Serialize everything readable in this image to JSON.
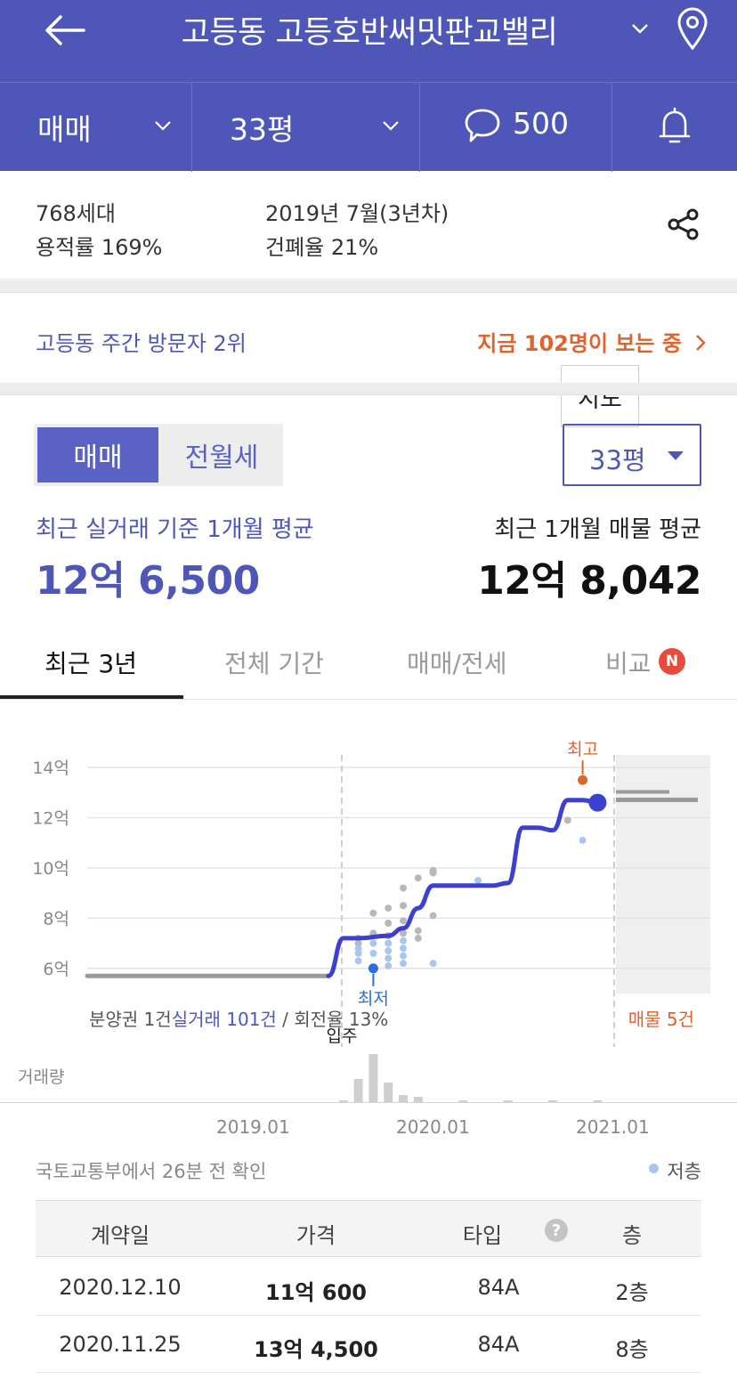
{
  "header": {
    "title": "고등동 고등호반써밋판교밸리"
  },
  "subbar": {
    "trade_type": "매매",
    "area": "33평",
    "comments_count": "500"
  },
  "info": {
    "households": "768세대",
    "floor_area_ratio": "용적률 169%",
    "completion": "2019년 7월(3년차)",
    "coverage_ratio": "건폐율 21%",
    "map_button": "지도"
  },
  "visitor": {
    "rank": "고등동 주간 방문자 2위",
    "now_viewing": "지금 102명이 보는 중"
  },
  "price_panel": {
    "toggle_active": "매매",
    "toggle_inactive": "전월세",
    "size_select": "33평",
    "trade_avg_label": "최근 실거래 기준 1개월 평균",
    "trade_avg_value": "12억 6,500",
    "listing_avg_label": "최근 1개월 매물 평균",
    "listing_avg_value": "12억 8,042"
  },
  "tabs": [
    {
      "label": "최근 3년",
      "active": true
    },
    {
      "label": "전체 기간",
      "active": false
    },
    {
      "label": "매매/전세",
      "active": false
    },
    {
      "label": "비교",
      "active": false,
      "badge": "N"
    }
  ],
  "chart_data": {
    "type": "line",
    "y_ticks": [
      "14억",
      "12억",
      "10억",
      "8억",
      "6억"
    ],
    "x_ticks": [
      "2019.01",
      "2020.01",
      "2021.01"
    ],
    "high_label": "최고",
    "low_label": "최저",
    "movein_label": "입주",
    "volume_label": "거래량",
    "presale_text": "분양권 1건",
    "trade_count_text": "실거래 101건",
    "turnover_text": " / 회전율 13%",
    "listings_text": "매물 5건",
    "ylim": [
      5,
      14.5
    ],
    "ylabel_unit": "억",
    "colors": {
      "line": "#3c3fcf",
      "high": "#e2622b",
      "low": "#2a6de0",
      "presale": "#9a9a9a"
    },
    "presale_line": {
      "x": [
        "2017.10",
        "2019.06"
      ],
      "y": [
        5.7,
        5.7
      ]
    },
    "trend": {
      "x": [
        "2019.06",
        "2019.07",
        "2019.08",
        "2019.10",
        "2019.11",
        "2019.12",
        "2020.01",
        "2020.02",
        "2020.03",
        "2020.05",
        "2020.06",
        "2020.07",
        "2020.08",
        "2020.09",
        "2020.10",
        "2020.11",
        "2020.12"
      ],
      "y": [
        5.7,
        7.2,
        7.2,
        7.3,
        7.6,
        8.4,
        9.3,
        9.3,
        9.3,
        9.3,
        9.4,
        11.6,
        11.6,
        11.5,
        12.7,
        12.7,
        12.6
      ]
    },
    "current_point": {
      "x": "2020.12",
      "y": 12.6
    },
    "high_point": {
      "x": "2020.11",
      "y": 13.5
    },
    "low_point": {
      "x": "2019.09",
      "y": 6.0
    },
    "listing_range": {
      "y_min": 12.8,
      "y_max": 13.1
    }
  },
  "source": {
    "text": "국토교통부에서 26분 전 확인",
    "legend_low_floor": "저층"
  },
  "table": {
    "headers": [
      "계약일",
      "가격",
      "타입",
      "층"
    ],
    "rows": [
      {
        "date": "2020.12.10",
        "price": "11억 600",
        "type": "84A",
        "floor": "2층"
      },
      {
        "date": "2020.11.25",
        "price": "13억 4,500",
        "type": "84A",
        "floor": "8층"
      }
    ]
  }
}
